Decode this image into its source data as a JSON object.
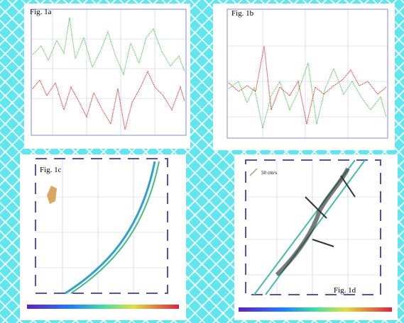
{
  "panels": [
    {
      "label": "Fig. 1a"
    },
    {
      "label": "Fig. 1b"
    },
    {
      "label": "Fig. 1c"
    },
    {
      "label": "Fig. 1d",
      "legend": "50 cm/s"
    }
  ]
}
